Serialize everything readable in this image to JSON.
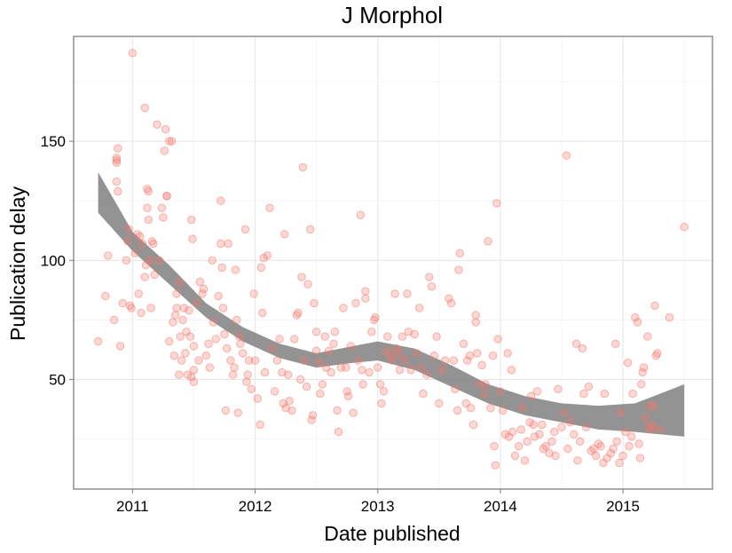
{
  "chart_data": {
    "type": "scatter",
    "title": "J Morphol",
    "xlabel": "Date published",
    "ylabel": "Publication delay",
    "xlim": [
      2010.52,
      2015.73
    ],
    "ylim": [
      4,
      194
    ],
    "x_ticks": [
      2011,
      2012,
      2013,
      2014,
      2015
    ],
    "x_tick_labels": [
      "2011",
      "2012",
      "2013",
      "2014",
      "2015"
    ],
    "y_ticks": [
      50,
      100,
      150
    ],
    "y_tick_labels": [
      "50",
      "100",
      "150"
    ],
    "grid": true,
    "legend": "none",
    "point_color": "#f8766d",
    "band_color": "#808080",
    "smooth_band": {
      "x": [
        2010.72,
        2011.0,
        2011.3,
        2011.6,
        2011.9,
        2012.2,
        2012.5,
        2012.8,
        2013.0,
        2013.3,
        2013.6,
        2013.9,
        2014.2,
        2014.5,
        2014.8,
        2015.1,
        2015.5
      ],
      "lower": [
        120,
        104,
        90,
        76,
        66,
        59,
        55,
        57,
        58,
        54,
        47,
        40,
        35,
        32,
        29,
        28,
        26
      ],
      "upper": [
        137,
        112,
        98,
        82,
        72,
        65,
        61,
        64,
        66,
        63,
        56,
        48,
        43,
        40,
        39,
        40,
        48
      ]
    },
    "points": [
      [
        2010.72,
        66
      ],
      [
        2010.78,
        85
      ],
      [
        2010.8,
        102
      ],
      [
        2010.85,
        75
      ],
      [
        2010.87,
        133
      ],
      [
        2010.87,
        141
      ],
      [
        2010.87,
        142
      ],
      [
        2010.87,
        143
      ],
      [
        2010.88,
        147
      ],
      [
        2010.88,
        129
      ],
      [
        2010.9,
        64
      ],
      [
        2010.92,
        82
      ],
      [
        2010.95,
        100
      ],
      [
        2010.96,
        108
      ],
      [
        2010.97,
        113
      ],
      [
        2010.98,
        81
      ],
      [
        2010.99,
        80
      ],
      [
        2011.0,
        187
      ],
      [
        2011.02,
        103
      ],
      [
        2011.04,
        111
      ],
      [
        2011.05,
        86
      ],
      [
        2011.06,
        110
      ],
      [
        2011.07,
        78
      ],
      [
        2011.08,
        107
      ],
      [
        2011.1,
        93
      ],
      [
        2011.1,
        164
      ],
      [
        2011.11,
        98
      ],
      [
        2011.12,
        122
      ],
      [
        2011.12,
        130
      ],
      [
        2011.13,
        129
      ],
      [
        2011.13,
        117
      ],
      [
        2011.14,
        100
      ],
      [
        2011.15,
        80
      ],
      [
        2011.16,
        108
      ],
      [
        2011.17,
        107
      ],
      [
        2011.18,
        94
      ],
      [
        2011.2,
        157
      ],
      [
        2011.22,
        100
      ],
      [
        2011.24,
        122
      ],
      [
        2011.25,
        118
      ],
      [
        2011.26,
        146
      ],
      [
        2011.27,
        155
      ],
      [
        2011.28,
        127
      ],
      [
        2011.28,
        127
      ],
      [
        2011.3,
        150
      ],
      [
        2011.3,
        66
      ],
      [
        2011.32,
        150
      ],
      [
        2011.33,
        74
      ],
      [
        2011.34,
        60
      ],
      [
        2011.35,
        77
      ],
      [
        2011.36,
        86
      ],
      [
        2011.36,
        80
      ],
      [
        2011.38,
        52
      ],
      [
        2011.38,
        91
      ],
      [
        2011.39,
        68
      ],
      [
        2011.4,
        58
      ],
      [
        2011.41,
        75
      ],
      [
        2011.42,
        80
      ],
      [
        2011.43,
        61
      ],
      [
        2011.44,
        70
      ],
      [
        2011.45,
        52
      ],
      [
        2011.46,
        79
      ],
      [
        2011.47,
        68
      ],
      [
        2011.48,
        51
      ],
      [
        2011.48,
        117
      ],
      [
        2011.49,
        109
      ],
      [
        2011.5,
        49
      ],
      [
        2011.5,
        64
      ],
      [
        2011.5,
        54
      ],
      [
        2011.52,
        82
      ],
      [
        2011.54,
        58
      ],
      [
        2011.55,
        91
      ],
      [
        2011.57,
        86
      ],
      [
        2011.58,
        88
      ],
      [
        2011.6,
        60
      ],
      [
        2011.62,
        65
      ],
      [
        2011.63,
        55
      ],
      [
        2011.65,
        100
      ],
      [
        2011.66,
        74
      ],
      [
        2011.68,
        67
      ],
      [
        2011.7,
        85
      ],
      [
        2011.72,
        107
      ],
      [
        2011.72,
        125
      ],
      [
        2011.73,
        97
      ],
      [
        2011.74,
        80
      ],
      [
        2011.75,
        69
      ],
      [
        2011.76,
        37
      ],
      [
        2011.77,
        63
      ],
      [
        2011.78,
        107
      ],
      [
        2011.8,
        58
      ],
      [
        2011.82,
        52
      ],
      [
        2011.83,
        55
      ],
      [
        2011.84,
        96
      ],
      [
        2011.85,
        75
      ],
      [
        2011.86,
        36
      ],
      [
        2011.87,
        68
      ],
      [
        2011.88,
        65
      ],
      [
        2011.9,
        61
      ],
      [
        2011.92,
        113
      ],
      [
        2011.93,
        49
      ],
      [
        2011.94,
        52
      ],
      [
        2011.95,
        58
      ],
      [
        2011.97,
        46
      ],
      [
        2011.99,
        86
      ],
      [
        2012.0,
        58
      ],
      [
        2012.02,
        42
      ],
      [
        2012.04,
        31
      ],
      [
        2012.05,
        97
      ],
      [
        2012.06,
        78
      ],
      [
        2012.07,
        101
      ],
      [
        2012.08,
        53
      ],
      [
        2012.1,
        102
      ],
      [
        2012.12,
        122
      ],
      [
        2012.14,
        63
      ],
      [
        2012.16,
        45
      ],
      [
        2012.18,
        58
      ],
      [
        2012.2,
        67
      ],
      [
        2012.22,
        53
      ],
      [
        2012.23,
        40
      ],
      [
        2012.24,
        111
      ],
      [
        2012.25,
        38
      ],
      [
        2012.27,
        52
      ],
      [
        2012.28,
        41
      ],
      [
        2012.3,
        37
      ],
      [
        2012.32,
        67
      ],
      [
        2012.34,
        77
      ],
      [
        2012.35,
        78
      ],
      [
        2012.37,
        50
      ],
      [
        2012.38,
        93
      ],
      [
        2012.39,
        139
      ],
      [
        2012.4,
        58
      ],
      [
        2012.42,
        47
      ],
      [
        2012.43,
        90
      ],
      [
        2012.45,
        113
      ],
      [
        2012.46,
        33
      ],
      [
        2012.47,
        35
      ],
      [
        2012.48,
        82
      ],
      [
        2012.5,
        62
      ],
      [
        2012.5,
        70
      ],
      [
        2012.52,
        57
      ],
      [
        2012.53,
        44
      ],
      [
        2012.55,
        48
      ],
      [
        2012.57,
        68
      ],
      [
        2012.58,
        55
      ],
      [
        2012.6,
        62
      ],
      [
        2012.62,
        53
      ],
      [
        2012.64,
        65
      ],
      [
        2012.65,
        70
      ],
      [
        2012.67,
        37
      ],
      [
        2012.68,
        28
      ],
      [
        2012.7,
        55
      ],
      [
        2012.72,
        80
      ],
      [
        2012.74,
        55
      ],
      [
        2012.75,
        45
      ],
      [
        2012.76,
        43
      ],
      [
        2012.78,
        64
      ],
      [
        2012.8,
        36
      ],
      [
        2012.82,
        82
      ],
      [
        2012.84,
        58
      ],
      [
        2012.86,
        119
      ],
      [
        2012.87,
        54
      ],
      [
        2012.88,
        48
      ],
      [
        2012.9,
        84
      ],
      [
        2012.9,
        87
      ],
      [
        2012.93,
        53
      ],
      [
        2012.95,
        70
      ],
      [
        2012.97,
        75
      ],
      [
        2012.98,
        76
      ],
      [
        2013.0,
        55
      ],
      [
        2013.02,
        48
      ],
      [
        2013.03,
        40
      ],
      [
        2013.05,
        45
      ],
      [
        2013.07,
        62
      ],
      [
        2013.08,
        68
      ],
      [
        2013.1,
        60
      ],
      [
        2013.12,
        58
      ],
      [
        2013.14,
        86
      ],
      [
        2013.15,
        63
      ],
      [
        2013.17,
        61
      ],
      [
        2013.18,
        54
      ],
      [
        2013.2,
        68
      ],
      [
        2013.22,
        58
      ],
      [
        2013.24,
        86
      ],
      [
        2013.25,
        70
      ],
      [
        2013.27,
        54
      ],
      [
        2013.3,
        69
      ],
      [
        2013.32,
        61
      ],
      [
        2013.34,
        80
      ],
      [
        2013.35,
        55
      ],
      [
        2013.37,
        44
      ],
      [
        2013.4,
        52
      ],
      [
        2013.42,
        93
      ],
      [
        2013.44,
        89
      ],
      [
        2013.46,
        60
      ],
      [
        2013.48,
        68
      ],
      [
        2013.5,
        40
      ],
      [
        2013.52,
        54
      ],
      [
        2013.55,
        58
      ],
      [
        2013.58,
        84
      ],
      [
        2013.6,
        82
      ],
      [
        2013.62,
        58
      ],
      [
        2013.63,
        46
      ],
      [
        2013.65,
        37
      ],
      [
        2013.66,
        96
      ],
      [
        2013.67,
        103
      ],
      [
        2013.7,
        65
      ],
      [
        2013.72,
        40
      ],
      [
        2013.73,
        58
      ],
      [
        2013.75,
        60
      ],
      [
        2013.76,
        38
      ],
      [
        2013.78,
        31
      ],
      [
        2013.8,
        74
      ],
      [
        2013.8,
        77
      ],
      [
        2013.81,
        61
      ],
      [
        2013.83,
        48
      ],
      [
        2013.85,
        56
      ],
      [
        2013.87,
        44
      ],
      [
        2013.88,
        48
      ],
      [
        2013.9,
        108
      ],
      [
        2013.92,
        38
      ],
      [
        2013.94,
        60
      ],
      [
        2013.95,
        22
      ],
      [
        2013.96,
        14
      ],
      [
        2013.97,
        124
      ],
      [
        2013.98,
        67
      ],
      [
        2014.0,
        45
      ],
      [
        2014.02,
        37
      ],
      [
        2014.04,
        27
      ],
      [
        2014.06,
        61
      ],
      [
        2014.07,
        26
      ],
      [
        2014.09,
        54
      ],
      [
        2014.1,
        28
      ],
      [
        2014.12,
        18
      ],
      [
        2014.15,
        22
      ],
      [
        2014.17,
        29
      ],
      [
        2014.18,
        38
      ],
      [
        2014.2,
        16
      ],
      [
        2014.22,
        24
      ],
      [
        2014.24,
        32
      ],
      [
        2014.25,
        43
      ],
      [
        2014.27,
        31
      ],
      [
        2014.28,
        26
      ],
      [
        2014.3,
        45
      ],
      [
        2014.32,
        27
      ],
      [
        2014.34,
        31
      ],
      [
        2014.35,
        21
      ],
      [
        2014.37,
        22
      ],
      [
        2014.4,
        19
      ],
      [
        2014.42,
        24
      ],
      [
        2014.44,
        28
      ],
      [
        2014.45,
        18
      ],
      [
        2014.47,
        46
      ],
      [
        2014.5,
        30
      ],
      [
        2014.52,
        36
      ],
      [
        2014.54,
        144
      ],
      [
        2014.55,
        21
      ],
      [
        2014.57,
        32
      ],
      [
        2014.6,
        27
      ],
      [
        2014.62,
        65
      ],
      [
        2014.63,
        16
      ],
      [
        2014.65,
        24
      ],
      [
        2014.67,
        63
      ],
      [
        2014.68,
        44
      ],
      [
        2014.7,
        30
      ],
      [
        2014.72,
        47
      ],
      [
        2014.74,
        20
      ],
      [
        2014.76,
        21
      ],
      [
        2014.78,
        18
      ],
      [
        2014.8,
        23
      ],
      [
        2014.82,
        22
      ],
      [
        2014.84,
        15
      ],
      [
        2014.85,
        44
      ],
      [
        2014.87,
        17
      ],
      [
        2014.9,
        19
      ],
      [
        2014.92,
        21
      ],
      [
        2014.94,
        65
      ],
      [
        2014.95,
        24
      ],
      [
        2014.97,
        15
      ],
      [
        2014.98,
        36
      ],
      [
        2015.0,
        18
      ],
      [
        2015.02,
        28
      ],
      [
        2015.04,
        57
      ],
      [
        2015.05,
        22
      ],
      [
        2015.07,
        26
      ],
      [
        2015.08,
        44
      ],
      [
        2015.1,
        76
      ],
      [
        2015.12,
        74
      ],
      [
        2015.13,
        23
      ],
      [
        2015.14,
        17
      ],
      [
        2015.15,
        48
      ],
      [
        2015.16,
        53
      ],
      [
        2015.17,
        55
      ],
      [
        2015.18,
        34
      ],
      [
        2015.2,
        68
      ],
      [
        2015.21,
        30
      ],
      [
        2015.22,
        39
      ],
      [
        2015.23,
        29
      ],
      [
        2015.24,
        31
      ],
      [
        2015.25,
        39
      ],
      [
        2015.26,
        81
      ],
      [
        2015.27,
        60
      ],
      [
        2015.28,
        61
      ],
      [
        2015.3,
        29
      ],
      [
        2015.38,
        76
      ],
      [
        2015.5,
        114
      ]
    ]
  }
}
